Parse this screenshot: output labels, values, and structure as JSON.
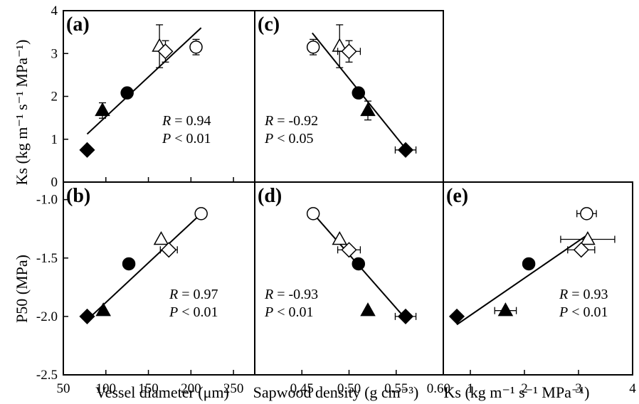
{
  "chart_data": [
    {
      "panel": "(a)",
      "type": "scatter",
      "xlim": [
        50,
        275
      ],
      "ylim": [
        0,
        4
      ],
      "xticks": [
        50,
        100,
        150,
        200,
        250
      ],
      "yticks": [
        0,
        1,
        2,
        3,
        4
      ],
      "stats": {
        "r": "= 0.94",
        "p": "< 0.01"
      },
      "points": [
        {
          "x": 78,
          "y": 0.75,
          "marker": "diamond",
          "fill": "black"
        },
        {
          "x": 96,
          "y": 1.67,
          "yerr": 0.18,
          "marker": "triangle",
          "fill": "black"
        },
        {
          "x": 125,
          "y": 2.08,
          "marker": "circle",
          "fill": "black"
        },
        {
          "x": 163,
          "y": 3.17,
          "yerr": 0.5,
          "marker": "triangle",
          "fill": "white"
        },
        {
          "x": 170,
          "y": 3.05,
          "yerr": 0.25,
          "marker": "diamond",
          "fill": "white"
        },
        {
          "x": 206,
          "y": 3.15,
          "yerr": 0.18,
          "marker": "circle",
          "fill": "white"
        }
      ],
      "fit": [
        [
          78,
          1.12
        ],
        [
          212,
          3.6
        ]
      ]
    },
    {
      "panel": "(b)",
      "type": "scatter",
      "xlim": [
        50,
        275
      ],
      "ylim": [
        -2.5,
        -0.85
      ],
      "xticks": [
        50,
        100,
        150,
        200,
        250
      ],
      "yticks": [
        -2.5,
        -2.0,
        -1.5,
        -1.0
      ],
      "ytick_labels": [
        "-2.5",
        "-2.0",
        "-1.5",
        "-1.0"
      ],
      "stats": {
        "r": "= 0.97",
        "p": "< 0.01"
      },
      "points": [
        {
          "x": 78,
          "y": -2.0,
          "marker": "diamond",
          "fill": "black"
        },
        {
          "x": 97,
          "y": -1.95,
          "marker": "triangle",
          "fill": "black"
        },
        {
          "x": 127,
          "y": -1.55,
          "marker": "circle",
          "fill": "black"
        },
        {
          "x": 165,
          "y": -1.34,
          "marker": "triangle",
          "fill": "white"
        },
        {
          "x": 174,
          "y": -1.43,
          "xerr": 10,
          "marker": "diamond",
          "fill": "white"
        },
        {
          "x": 212,
          "y": -1.12,
          "marker": "circle",
          "fill": "white"
        }
      ],
      "fit": [
        [
          78,
          -2.03
        ],
        [
          212,
          -1.12
        ]
      ]
    },
    {
      "panel": "(c)",
      "type": "scatter",
      "xlim": [
        0.4,
        0.6
      ],
      "ylim": [
        0,
        4
      ],
      "stats": {
        "r": "= -0.92",
        "p": "< 0.05"
      },
      "points": [
        {
          "x": 0.462,
          "y": 3.15,
          "yerr": 0.18,
          "marker": "circle",
          "fill": "white"
        },
        {
          "x": 0.49,
          "y": 3.17,
          "yerr": 0.5,
          "marker": "triangle",
          "fill": "white"
        },
        {
          "x": 0.5,
          "y": 3.05,
          "yerr": 0.25,
          "xerr": 0.012,
          "marker": "diamond",
          "fill": "white"
        },
        {
          "x": 0.51,
          "y": 2.08,
          "xerr": 0.004,
          "marker": "circle",
          "fill": "black"
        },
        {
          "x": 0.52,
          "y": 1.67,
          "yerr": 0.22,
          "marker": "triangle",
          "fill": "black"
        },
        {
          "x": 0.56,
          "y": 0.75,
          "xerr": 0.011,
          "marker": "diamond",
          "fill": "black"
        }
      ],
      "fit": [
        [
          0.461,
          3.48
        ],
        [
          0.56,
          0.78
        ]
      ]
    },
    {
      "panel": "(d)",
      "type": "scatter",
      "xlim": [
        0.4,
        0.6
      ],
      "ylim": [
        -2.5,
        -0.85
      ],
      "xticks": [
        0.45,
        0.5,
        0.55,
        0.6
      ],
      "xtick_labels": [
        "0.45",
        "0.50",
        "0.55",
        "0.60"
      ],
      "stats": {
        "r": "= -0.93",
        "p": "< 0.01"
      },
      "points": [
        {
          "x": 0.462,
          "y": -1.12,
          "marker": "circle",
          "fill": "white"
        },
        {
          "x": 0.49,
          "y": -1.34,
          "marker": "triangle",
          "fill": "white"
        },
        {
          "x": 0.5,
          "y": -1.43,
          "xerr": 0.012,
          "marker": "diamond",
          "fill": "white"
        },
        {
          "x": 0.51,
          "y": -1.55,
          "xerr": 0.004,
          "marker": "circle",
          "fill": "black"
        },
        {
          "x": 0.52,
          "y": -1.95,
          "marker": "triangle",
          "fill": "black"
        },
        {
          "x": 0.56,
          "y": -2.0,
          "xerr": 0.011,
          "marker": "diamond",
          "fill": "black"
        }
      ],
      "fit": [
        [
          0.462,
          -1.12
        ],
        [
          0.56,
          -2.02
        ]
      ]
    },
    {
      "panel": "(e)",
      "type": "scatter",
      "xlim": [
        0.5,
        4
      ],
      "ylim": [
        -2.5,
        -0.85
      ],
      "xticks": [
        1,
        2,
        3,
        4
      ],
      "stats": {
        "r": "= 0.93",
        "p": "< 0.01"
      },
      "points": [
        {
          "x": 0.75,
          "y": -2.0,
          "marker": "diamond",
          "fill": "black"
        },
        {
          "x": 1.65,
          "y": -1.95,
          "xerr": 0.2,
          "marker": "triangle",
          "fill": "black"
        },
        {
          "x": 2.08,
          "y": -1.55,
          "marker": "circle",
          "fill": "black"
        },
        {
          "x": 3.17,
          "y": -1.34,
          "xerr": 0.5,
          "marker": "triangle",
          "fill": "white"
        },
        {
          "x": 3.05,
          "y": -1.43,
          "xerr": 0.25,
          "marker": "diamond",
          "fill": "white"
        },
        {
          "x": 3.15,
          "y": -1.12,
          "xerr": 0.18,
          "marker": "circle",
          "fill": "white"
        }
      ],
      "fit": [
        [
          0.75,
          -2.07
        ],
        [
          3.17,
          -1.3
        ]
      ]
    }
  ],
  "axes": {
    "ylabel_top": "Ks (kg m⁻¹ s⁻¹ MPa⁻¹)",
    "ylabel_bottom": "P50 (MPa)",
    "xlabel_left": "Vessel diameter (μm)",
    "xlabel_mid": "Sapwood density (g cm⁻³)",
    "xlabel_right": "Ks (kg m⁻¹ s⁻¹ MPa⁻¹)"
  }
}
